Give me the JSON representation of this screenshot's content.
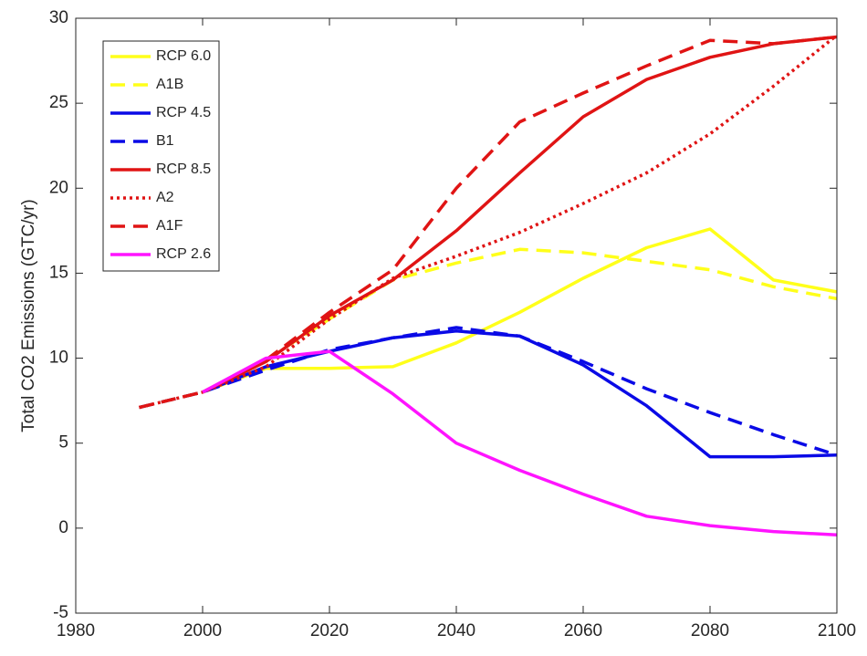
{
  "chart_data": {
    "type": "line",
    "ylabel": "Total CO2 Emissions (GTC/yr)",
    "x": [
      1990,
      2000,
      2010,
      2020,
      2030,
      2040,
      2050,
      2060,
      2070,
      2080,
      2090,
      2100
    ],
    "xlim": [
      1980,
      2100
    ],
    "xticks": [
      1980,
      2000,
      2020,
      2040,
      2060,
      2080,
      2100
    ],
    "ylim": [
      -5,
      30
    ],
    "yticks": [
      -5,
      0,
      5,
      10,
      15,
      20,
      25,
      30
    ],
    "grid": false,
    "legend": "upper left",
    "series": [
      {
        "name": "RCP 6.0",
        "color": "#ffff1a",
        "dash": "solid",
        "values": [
          null,
          8.0,
          9.4,
          9.4,
          9.5,
          10.9,
          12.7,
          14.7,
          16.5,
          17.6,
          14.6,
          13.9
        ]
      },
      {
        "name": "A1B",
        "color": "#ffff1a",
        "dash": "dashed",
        "values": [
          7.1,
          8.0,
          9.9,
          12.3,
          14.6,
          15.6,
          16.4,
          16.2,
          15.7,
          15.2,
          14.2,
          13.5
        ]
      },
      {
        "name": "RCP 4.5",
        "color": "#0a0ae6",
        "dash": "solid",
        "values": [
          null,
          8.0,
          9.5,
          10.4,
          11.2,
          11.6,
          11.3,
          9.6,
          7.2,
          4.2,
          4.2,
          4.3
        ]
      },
      {
        "name": "B1",
        "color": "#0a0ae6",
        "dash": "dashed",
        "values": [
          7.1,
          8.0,
          9.3,
          10.5,
          11.2,
          11.8,
          11.3,
          9.8,
          8.2,
          6.8,
          5.5,
          4.3
        ]
      },
      {
        "name": "RCP 8.5",
        "color": "#e01414",
        "dash": "solid",
        "values": [
          null,
          8.0,
          9.8,
          12.5,
          14.6,
          17.5,
          20.9,
          24.2,
          26.4,
          27.7,
          28.5,
          28.9
        ]
      },
      {
        "name": "A2",
        "color": "#e01414",
        "dash": "dotted",
        "values": [
          7.1,
          8.0,
          9.5,
          12.3,
          14.7,
          16.0,
          17.4,
          19.1,
          20.9,
          23.2,
          26.0,
          29.0
        ]
      },
      {
        "name": "A1F",
        "color": "#e01414",
        "dash": "dashed",
        "values": [
          7.1,
          8.0,
          9.9,
          12.7,
          15.2,
          20.0,
          23.9,
          25.6,
          27.2,
          28.7,
          28.5,
          28.9
        ]
      },
      {
        "name": "RCP 2.6",
        "color": "#ff14ff",
        "dash": "solid",
        "values": [
          null,
          8.0,
          10.0,
          10.4,
          7.9,
          5.0,
          3.4,
          2.0,
          0.7,
          0.15,
          -0.2,
          -0.4
        ]
      }
    ]
  }
}
